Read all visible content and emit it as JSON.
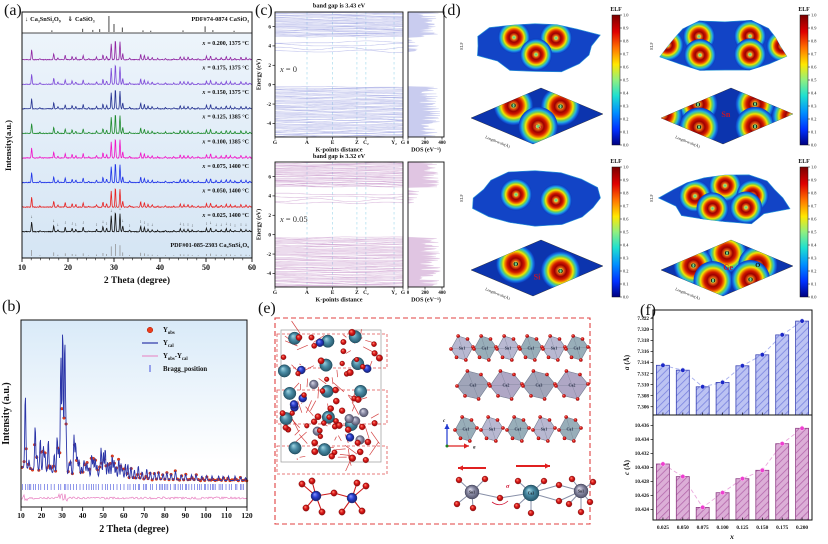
{
  "panels": {
    "a": {
      "tag": "(a)"
    },
    "b": {
      "tag": "(b)"
    },
    "c": {
      "tag": "(c)"
    },
    "d": {
      "tag": "(d)"
    },
    "e": {
      "tag": "(e)",
      "atom_labels_row1": [
        "Sn1",
        "Ca1",
        "Sn1",
        "Ca1",
        "Sn1",
        "Ca1"
      ],
      "atom_labels_row2": [
        "Ca3",
        "Ca2",
        "Ca3",
        "Ca2"
      ],
      "atom_labels_row3": [
        "Ca1",
        "Sn1",
        "Ca1",
        "Sn1",
        "Ca1"
      ],
      "cluster_labels": [
        "Sn1",
        "Ca3",
        "Sn1"
      ],
      "sigma": "σ",
      "axis_a": "a",
      "axis_c": "c",
      "atom_colors": {
        "Ca": "#4b8da6",
        "O": "#e01a1a",
        "Si": "#2a3fd0",
        "Sn": "#8e8fa9"
      }
    },
    "f": {
      "tag": "(f)"
    }
  },
  "chart_data": [
    {
      "id": "xrd_stack",
      "type": "line",
      "xlabel": "2 Theta (degree)",
      "ylabel": "Intensity(a.u.)",
      "xlim": [
        10,
        60
      ],
      "x_ticks": [
        10,
        20,
        30,
        40,
        50,
        60
      ],
      "legend": {
        "marker1": "↓",
        "phase1": "Ca₃SnSi₂O₉",
        "marker2": "⇓",
        "phase2": "CaSiO₃"
      },
      "ref_top": "PDF#74-0874 CaSiO₃",
      "ref_bottom": "PDF#01-085-2303 Ca₃SnSi₂O₉",
      "series": [
        {
          "x_var": "x",
          "label": "= 0.200, 1375 °C",
          "color": "#9127a3"
        },
        {
          "x_var": "x",
          "label": "= 0.175, 1375 °C",
          "color": "#7e4bd8"
        },
        {
          "x_var": "x",
          "label": "= 0.150, 1375 °C",
          "color": "#283593"
        },
        {
          "x_var": "x",
          "label": "= 0.125, 1385 °C",
          "color": "#1f8c2f"
        },
        {
          "x_var": "x",
          "label": "= 0.100, 1385 °C",
          "color": "#f015c8"
        },
        {
          "x_var": "x",
          "label": "= 0.075, 1400 °C",
          "color": "#2036e8"
        },
        {
          "x_var": "x",
          "label": "= 0.050, 1400 °C",
          "color": "#e82222"
        },
        {
          "x_var": "x",
          "label": "= 0.025, 1400 °C",
          "color": "#141414"
        }
      ],
      "peaks": [
        [
          12.1,
          0.5
        ],
        [
          13.9,
          0.06
        ],
        [
          16.9,
          0.3
        ],
        [
          17.8,
          0.1
        ],
        [
          19.4,
          0.22
        ],
        [
          20.9,
          0.17
        ],
        [
          21.7,
          0.12
        ],
        [
          23.3,
          0.22
        ],
        [
          24.5,
          0.05
        ],
        [
          26.2,
          0.13
        ],
        [
          27.6,
          0.25
        ],
        [
          28.4,
          0.17
        ],
        [
          29.4,
          0.8
        ],
        [
          30.3,
          1.0
        ],
        [
          31.3,
          0.9
        ],
        [
          31.9,
          0.3
        ],
        [
          33.4,
          0.08
        ],
        [
          35.8,
          0.27
        ],
        [
          36.6,
          0.22
        ],
        [
          37.4,
          0.13
        ],
        [
          38.3,
          0.11
        ],
        [
          39.5,
          0.06
        ],
        [
          41.2,
          0.07
        ],
        [
          43.0,
          0.06
        ],
        [
          44.4,
          0.15
        ],
        [
          45.2,
          0.12
        ],
        [
          46.1,
          0.13
        ],
        [
          47.0,
          0.08
        ],
        [
          48.3,
          0.06
        ],
        [
          50.1,
          0.17
        ],
        [
          51.0,
          0.2
        ],
        [
          52.2,
          0.11
        ],
        [
          53.3,
          0.1
        ],
        [
          54.4,
          0.15
        ],
        [
          55.3,
          0.12
        ],
        [
          56.3,
          0.08
        ],
        [
          57.6,
          0.13
        ],
        [
          58.7,
          0.1
        ],
        [
          59.5,
          0.06
        ]
      ],
      "ref_peaks": [
        [
          16.5,
          0.1
        ],
        [
          23.2,
          0.2
        ],
        [
          25.4,
          0.13
        ],
        [
          26.9,
          0.18
        ],
        [
          28.9,
          1.0
        ],
        [
          30.0,
          0.5
        ],
        [
          31.8,
          0.28
        ],
        [
          36.3,
          0.1
        ],
        [
          38.0,
          0.08
        ],
        [
          45.0,
          0.1
        ],
        [
          49.8,
          0.35
        ],
        [
          51.5,
          0.12
        ],
        [
          56.1,
          0.08
        ]
      ]
    },
    {
      "id": "rietveld",
      "type": "scatter",
      "xlabel": "2 Theta (degree)",
      "ylabel": "Intensity (a.u.)",
      "xlim": [
        10,
        120
      ],
      "x_ticks": [
        10,
        20,
        30,
        40,
        50,
        60,
        70,
        80,
        90,
        100,
        110,
        120
      ],
      "legend": [
        {
          "base": "Y",
          "sub": "obs",
          "marker": "circle",
          "color": "#eb3c1e"
        },
        {
          "base": "Y",
          "sub": "cal",
          "marker": "line",
          "color": "#2b35a8"
        },
        {
          "base": "Y",
          "sub": "obs",
          "base2": "-Y",
          "sub2": "cal",
          "marker": "line",
          "color": "#e87fc0"
        },
        {
          "base": "Bragg_position",
          "marker": "tick",
          "color": "#4450dd"
        }
      ],
      "extra_peaks": [
        [
          34.2,
          0.1
        ],
        [
          40.6,
          0.1
        ],
        [
          42.1,
          0.09
        ],
        [
          49.0,
          0.2
        ],
        [
          60.8,
          0.1
        ],
        [
          62,
          0.1
        ],
        [
          63.5,
          0.08
        ],
        [
          65.2,
          0.06
        ],
        [
          67.1,
          0.09
        ],
        [
          69,
          0.05
        ],
        [
          71.2,
          0.07
        ],
        [
          73,
          0.05
        ],
        [
          75.1,
          0.05
        ],
        [
          77,
          0.05
        ],
        [
          79.2,
          0.04
        ],
        [
          81,
          0.05
        ],
        [
          83.1,
          0.04
        ],
        [
          85.2,
          0.06
        ],
        [
          88,
          0.035
        ],
        [
          90.1,
          0.04
        ],
        [
          93,
          0.035
        ],
        [
          95.2,
          0.04
        ],
        [
          98,
          0.03
        ],
        [
          100.3,
          0.03
        ],
        [
          103,
          0.03
        ],
        [
          106.2,
          0.03
        ],
        [
          108.4,
          0.03
        ],
        [
          111,
          0.03
        ],
        [
          114.2,
          0.03
        ],
        [
          117,
          0.025
        ],
        [
          119.3,
          0.02
        ]
      ]
    },
    {
      "id": "band_x0",
      "type": "line",
      "subtype": "band-structure",
      "title": "band gap is 3.43 eV",
      "band_gap_eV": 3.43,
      "annotation_var": "x",
      "annotation_rest": "= 0",
      "ylabel": "Energy (eV)",
      "ylim": [
        -5.4,
        7.5
      ],
      "y_ticks": [
        -4,
        -2,
        0,
        2,
        4,
        6
      ],
      "k_labels": [
        "G",
        "A",
        "E",
        "Z",
        "C₂",
        "Y₂",
        "G"
      ],
      "k_pos": [
        0,
        0.25,
        0.45,
        0.64,
        0.71,
        0.93,
        1.0
      ],
      "xlabel": "K-points distance",
      "vbm": -0.2,
      "cbm": 3.23,
      "dos_xlabel": "DOS (eV⁻¹)",
      "dos_ticks": [
        0,
        200,
        400
      ],
      "color": "#8a90dc"
    },
    {
      "id": "band_x005",
      "type": "line",
      "subtype": "band-structure",
      "title": "band gap is 3.32 eV",
      "band_gap_eV": 3.32,
      "annotation_var": "x",
      "annotation_rest": "= 0.05",
      "ylabel": "Energy (eV)",
      "ylim": [
        -5.4,
        7.5
      ],
      "y_ticks": [
        -4,
        -2,
        0,
        2,
        4,
        6
      ],
      "k_labels": [
        "G",
        "A",
        "E",
        "Z",
        "C₂",
        "Y₂",
        "G"
      ],
      "k_pos": [
        0,
        0.25,
        0.45,
        0.64,
        0.71,
        0.93,
        1.0
      ],
      "xlabel": "K-points distance",
      "vbm": -0.25,
      "cbm": 3.07,
      "dos_xlabel": "DOS (eV⁻¹)",
      "dos_ticks": [
        0,
        200,
        400
      ],
      "color": "#bb7fc0"
    },
    {
      "id": "elf",
      "type": "heatmap",
      "subtype": "elf-surface",
      "z_label": "ELF",
      "axis_label": "Length-scale(Å)",
      "colorbar": {
        "label": "ELF",
        "ticks": [
          "1.0",
          "0.9",
          "0.8",
          "0.7",
          "0.6",
          "0.5",
          "0.4",
          "0.3",
          "0.2",
          "0.1",
          "0.0"
        ]
      },
      "plots": [
        {
          "element": "Ca",
          "donuts": [
            {
              "u": -0.42,
              "v": -0.45,
              "l": "O"
            },
            {
              "u": 0.42,
              "v": -0.42,
              "l": "O"
            },
            {
              "u": 0.02,
              "v": 0.45,
              "l": "Ca",
              "el": true
            }
          ]
        },
        {
          "element": "Sn",
          "center": {
            "t": "Sn",
            "u": -0.02,
            "v": -0.05
          },
          "donuts": [
            {
              "u": -0.52,
              "v": -0.5,
              "l": "O"
            },
            {
              "u": 0.5,
              "v": -0.52,
              "l": "O"
            },
            {
              "u": -0.5,
              "v": 0.48,
              "l": "O"
            },
            {
              "u": 0.5,
              "v": 0.45,
              "l": "O"
            },
            {
              "u": -1.15,
              "v": -0.05
            },
            {
              "u": 1.15,
              "v": 0.0
            }
          ]
        },
        {
          "element": "Si",
          "center": {
            "t": "Si",
            "u": 0.0,
            "v": 0.42
          },
          "donuts": [
            {
              "u": -0.38,
              "v": -0.18,
              "l": "O"
            },
            {
              "u": 0.42,
              "v": 0.12,
              "l": "O"
            }
          ]
        },
        {
          "element": "Ge",
          "center": {
            "t": "Ge",
            "u": 0.02,
            "v": 0.0
          },
          "donuts": [
            {
              "u": 0.0,
              "v": -0.65,
              "l": "O"
            },
            {
              "u": -0.6,
              "v": -0.1,
              "l": "O"
            },
            {
              "u": 0.55,
              "v": -0.12,
              "l": "O"
            },
            {
              "u": -0.25,
              "v": 0.55,
              "l": "O"
            },
            {
              "u": 0.42,
              "v": 0.5,
              "l": "O"
            }
          ]
        }
      ]
    },
    {
      "id": "lattice_a",
      "type": "bar",
      "categories": [
        "0.025",
        "0.050",
        "0.075",
        "0.100",
        "0.125",
        "0.150",
        "0.175",
        "0.200"
      ],
      "values": [
        7.3135,
        7.3126,
        7.3096,
        7.3104,
        7.3134,
        7.3154,
        7.319,
        7.3215
      ],
      "ylabel_var": "a",
      "ylabel_rest": "(Å)",
      "ylim": [
        7.3045,
        7.3235
      ],
      "y_ticks": [
        "7.306",
        "7.308",
        "7.310",
        "7.312",
        "7.314",
        "7.316",
        "7.318",
        "7.320",
        "7.322"
      ],
      "bar_fill": "#bcc3f3",
      "bar_edge": "#3a44b4",
      "hatch": "#7a84e0",
      "dot": "#1c28c8",
      "trend": "#a8b0ee"
    },
    {
      "id": "lattice_c",
      "type": "bar",
      "categories": [
        "0.025",
        "0.050",
        "0.075",
        "0.100",
        "0.125",
        "0.150",
        "0.175",
        "0.200"
      ],
      "values": [
        10.4305,
        10.4287,
        10.4243,
        10.4264,
        10.4284,
        10.4296,
        10.4334,
        10.4356
      ],
      "ylabel_var": "c",
      "ylabel_rest": "(Å)",
      "xlabel_var": "x",
      "ylim": [
        10.4225,
        10.4375
      ],
      "y_ticks": [
        "10.424",
        "10.426",
        "10.428",
        "10.430",
        "10.432",
        "10.434",
        "10.436"
      ],
      "bar_fill": "#dcaed7",
      "bar_edge": "#8f3f86",
      "hatch": "#b468ac",
      "dot": "#ee3fd0",
      "trend": "#eaa8dc"
    }
  ]
}
